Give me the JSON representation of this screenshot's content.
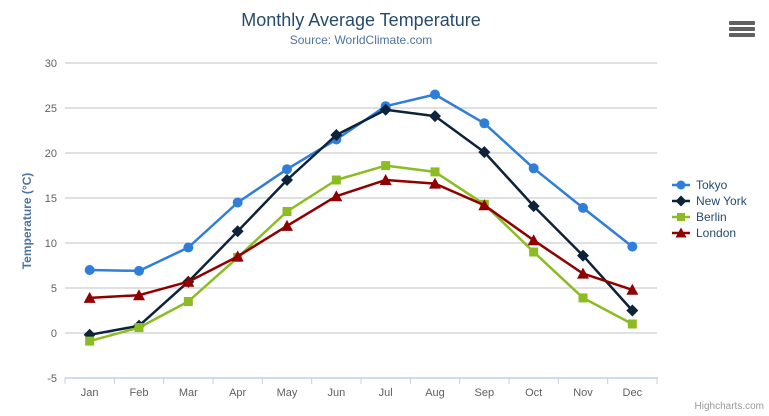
{
  "chart_data": {
    "type": "line",
    "title": "Monthly Average Temperature",
    "subtitle": "Source: WorldClimate.com",
    "xlabel": "",
    "ylabel": "Temperature (°C)",
    "categories": [
      "Jan",
      "Feb",
      "Mar",
      "Apr",
      "May",
      "Jun",
      "Jul",
      "Aug",
      "Sep",
      "Oct",
      "Nov",
      "Dec"
    ],
    "yticks": [
      -5,
      0,
      5,
      10,
      15,
      20,
      25,
      30
    ],
    "ylim": [
      -5,
      30
    ],
    "grid": true,
    "legend_position": "right",
    "series": [
      {
        "name": "Tokyo",
        "color": "#2f7ed8",
        "marker": "circle",
        "values": [
          7.0,
          6.9,
          9.5,
          14.5,
          18.2,
          21.5,
          25.2,
          26.5,
          23.3,
          18.3,
          13.9,
          9.6
        ]
      },
      {
        "name": "New York",
        "color": "#0d233a",
        "marker": "diamond",
        "values": [
          -0.2,
          0.8,
          5.7,
          11.3,
          17.0,
          22.0,
          24.8,
          24.1,
          20.1,
          14.1,
          8.6,
          2.5
        ]
      },
      {
        "name": "Berlin",
        "color": "#8bbc21",
        "marker": "square",
        "values": [
          -0.9,
          0.6,
          3.5,
          8.4,
          13.5,
          17.0,
          18.6,
          17.9,
          14.3,
          9.0,
          3.9,
          1.0
        ]
      },
      {
        "name": "London",
        "color": "#910000",
        "marker": "triangle",
        "values": [
          3.9,
          4.2,
          5.7,
          8.5,
          11.9,
          15.2,
          17.0,
          16.6,
          14.2,
          10.3,
          6.6,
          4.8
        ]
      }
    ]
  },
  "colors": {
    "background": "#ffffff",
    "grid": "#c0c0c0",
    "axis_line": "#c0d0e0",
    "tick_label": "#606060",
    "title": "#274b6d",
    "subtitle": "#4d759e",
    "axis_title": "#4d759e",
    "legend_text": "#274b6d",
    "credits": "#999999",
    "menu_icon": "#606060"
  },
  "export_menu": {
    "icon": "hamburger-icon"
  },
  "credits": "Highcharts.com"
}
